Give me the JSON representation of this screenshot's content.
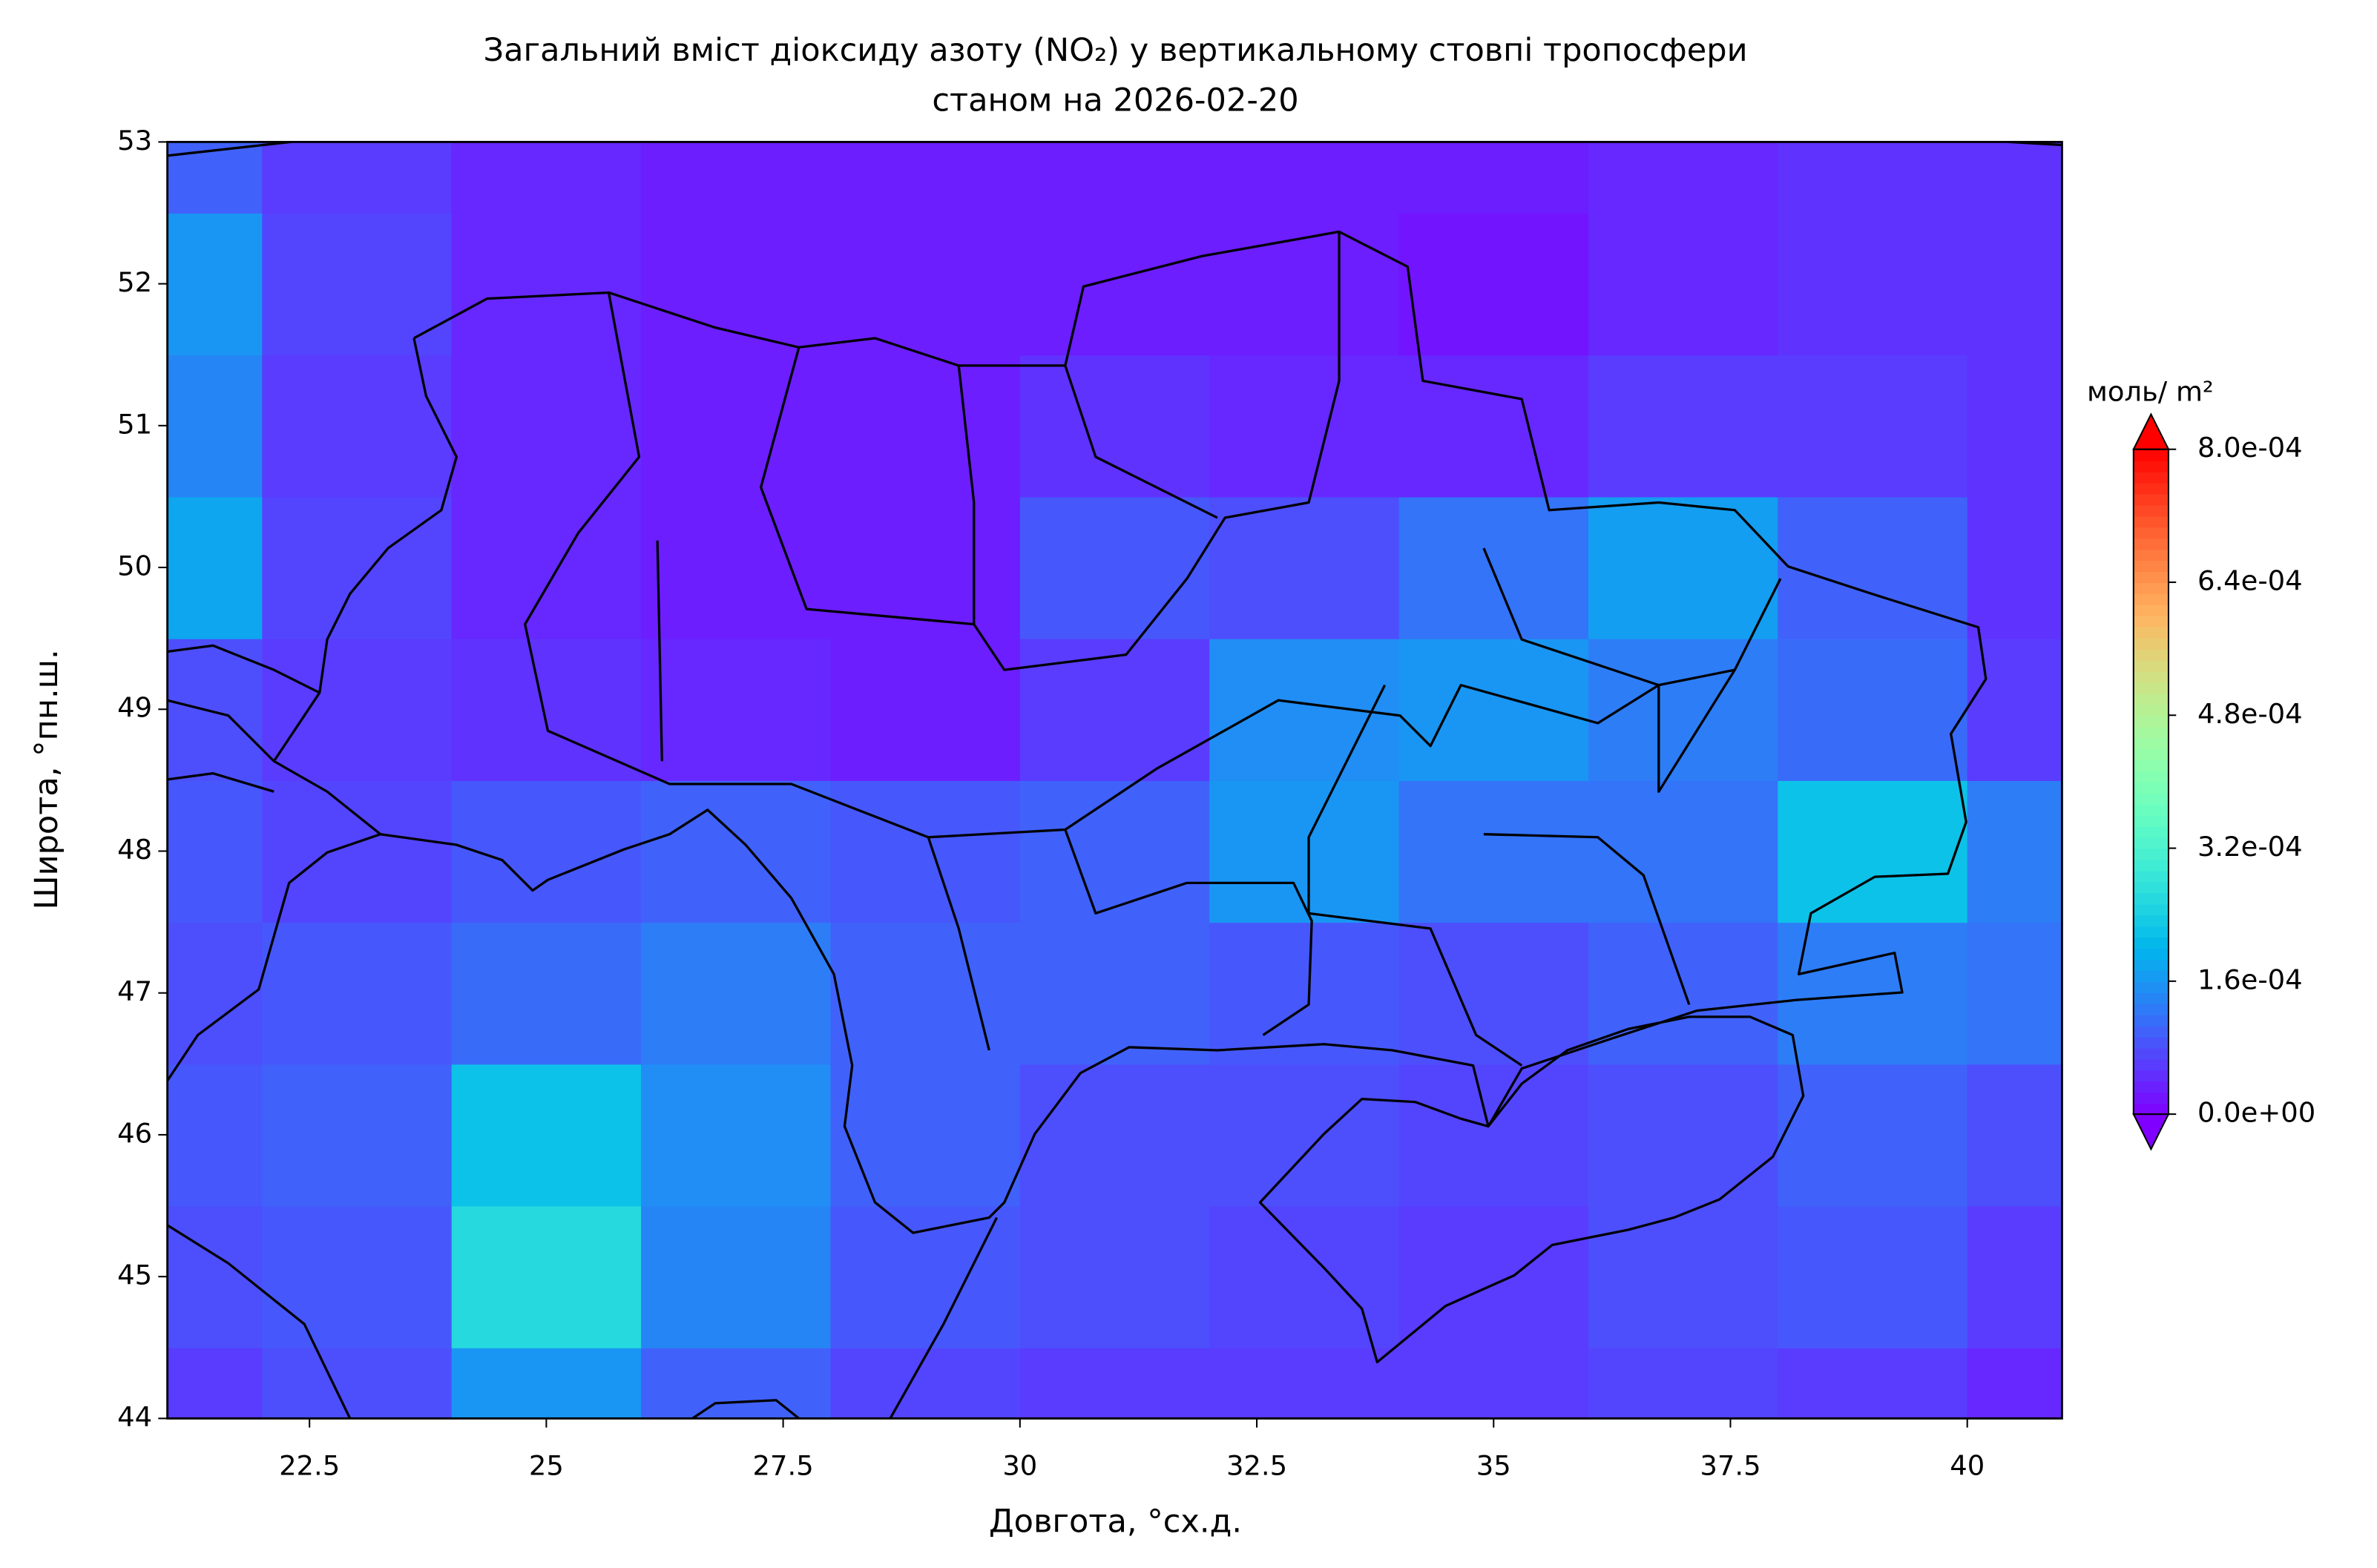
{
  "chart_data": {
    "type": "contour",
    "title": "Загальний вміст діоксиду азоту (NO₂) у вертикальному стовпі тропосфери",
    "subtitle": "станом на 2026-02-20",
    "x_label": "Довгота, °сх.д.",
    "y_label": "Широта, °пн.ш.",
    "colorbar_label": "моль/ m²",
    "colormap": "rainbow",
    "x": [
      21,
      23,
      25,
      27,
      29,
      31,
      33,
      35,
      37,
      39,
      41
    ],
    "y": [
      44,
      45,
      46,
      47,
      48,
      49,
      50,
      51,
      52,
      53
    ],
    "z": [
      [
        6e-05,
        8e-05,
        0.00016,
        0.0001,
        7e-05,
        6e-05,
        6e-05,
        6e-05,
        7e-05,
        6e-05,
        4e-05
      ],
      [
        8e-05,
        9e-05,
        0.00026,
        0.00014,
        9e-05,
        8e-05,
        7e-05,
        6e-05,
        8e-05,
        9e-05,
        6e-05
      ],
      [
        9e-05,
        0.0001,
        0.00022,
        0.00015,
        0.0001,
        8e-05,
        8e-05,
        7e-05,
        8e-05,
        0.0001,
        8e-05
      ],
      [
        8e-05,
        9e-05,
        0.00011,
        0.00013,
        0.0001,
        0.0001,
        9e-05,
        8e-05,
        0.0001,
        0.00013,
        0.00012
      ],
      [
        9e-05,
        7e-05,
        9e-05,
        0.0001,
        9e-05,
        0.0001,
        0.00016,
        0.00012,
        0.00012,
        0.00022,
        0.00013
      ],
      [
        8e-05,
        6e-05,
        5e-05,
        4e-05,
        3e-05,
        6e-05,
        0.00015,
        0.00016,
        0.00013,
        0.00011,
        6e-05
      ],
      [
        0.00018,
        7e-05,
        4e-05,
        3e-05,
        3e-05,
        9e-05,
        8e-05,
        0.00012,
        0.00017,
        0.0001,
        5e-05
      ],
      [
        0.00014,
        6e-05,
        4e-05,
        3e-05,
        3e-05,
        5e-05,
        4e-05,
        4e-05,
        6e-05,
        6e-05,
        5e-05
      ],
      [
        0.00016,
        7e-05,
        4e-05,
        3e-05,
        3e-05,
        3e-05,
        3e-05,
        2e-05,
        4e-05,
        5e-05,
        5e-05
      ],
      [
        0.0001,
        6e-05,
        4e-05,
        3e-05,
        3e-05,
        3e-05,
        3e-05,
        3e-05,
        4e-05,
        5e-05,
        5e-05
      ]
    ],
    "xlim": [
      21,
      41
    ],
    "ylim": [
      44,
      53
    ],
    "xticks": [
      22.5,
      25.0,
      27.5,
      30.0,
      32.5,
      35.0,
      37.5,
      40.0
    ],
    "yticks": [
      44,
      45,
      46,
      47,
      48,
      49,
      50,
      51,
      52,
      53
    ],
    "clim": [
      0,
      0.0008
    ],
    "cticks": [
      {
        "value": 0,
        "label": "0.0e+00"
      },
      {
        "value": 0.00016,
        "label": "1.6e-04"
      },
      {
        "value": 0.00032,
        "label": "3.2e-04"
      },
      {
        "value": 0.00048,
        "label": "4.8e-04"
      },
      {
        "value": 0.00064,
        "label": "6.4e-04"
      },
      {
        "value": 0.0008,
        "label": "8.0e-04"
      }
    ]
  }
}
